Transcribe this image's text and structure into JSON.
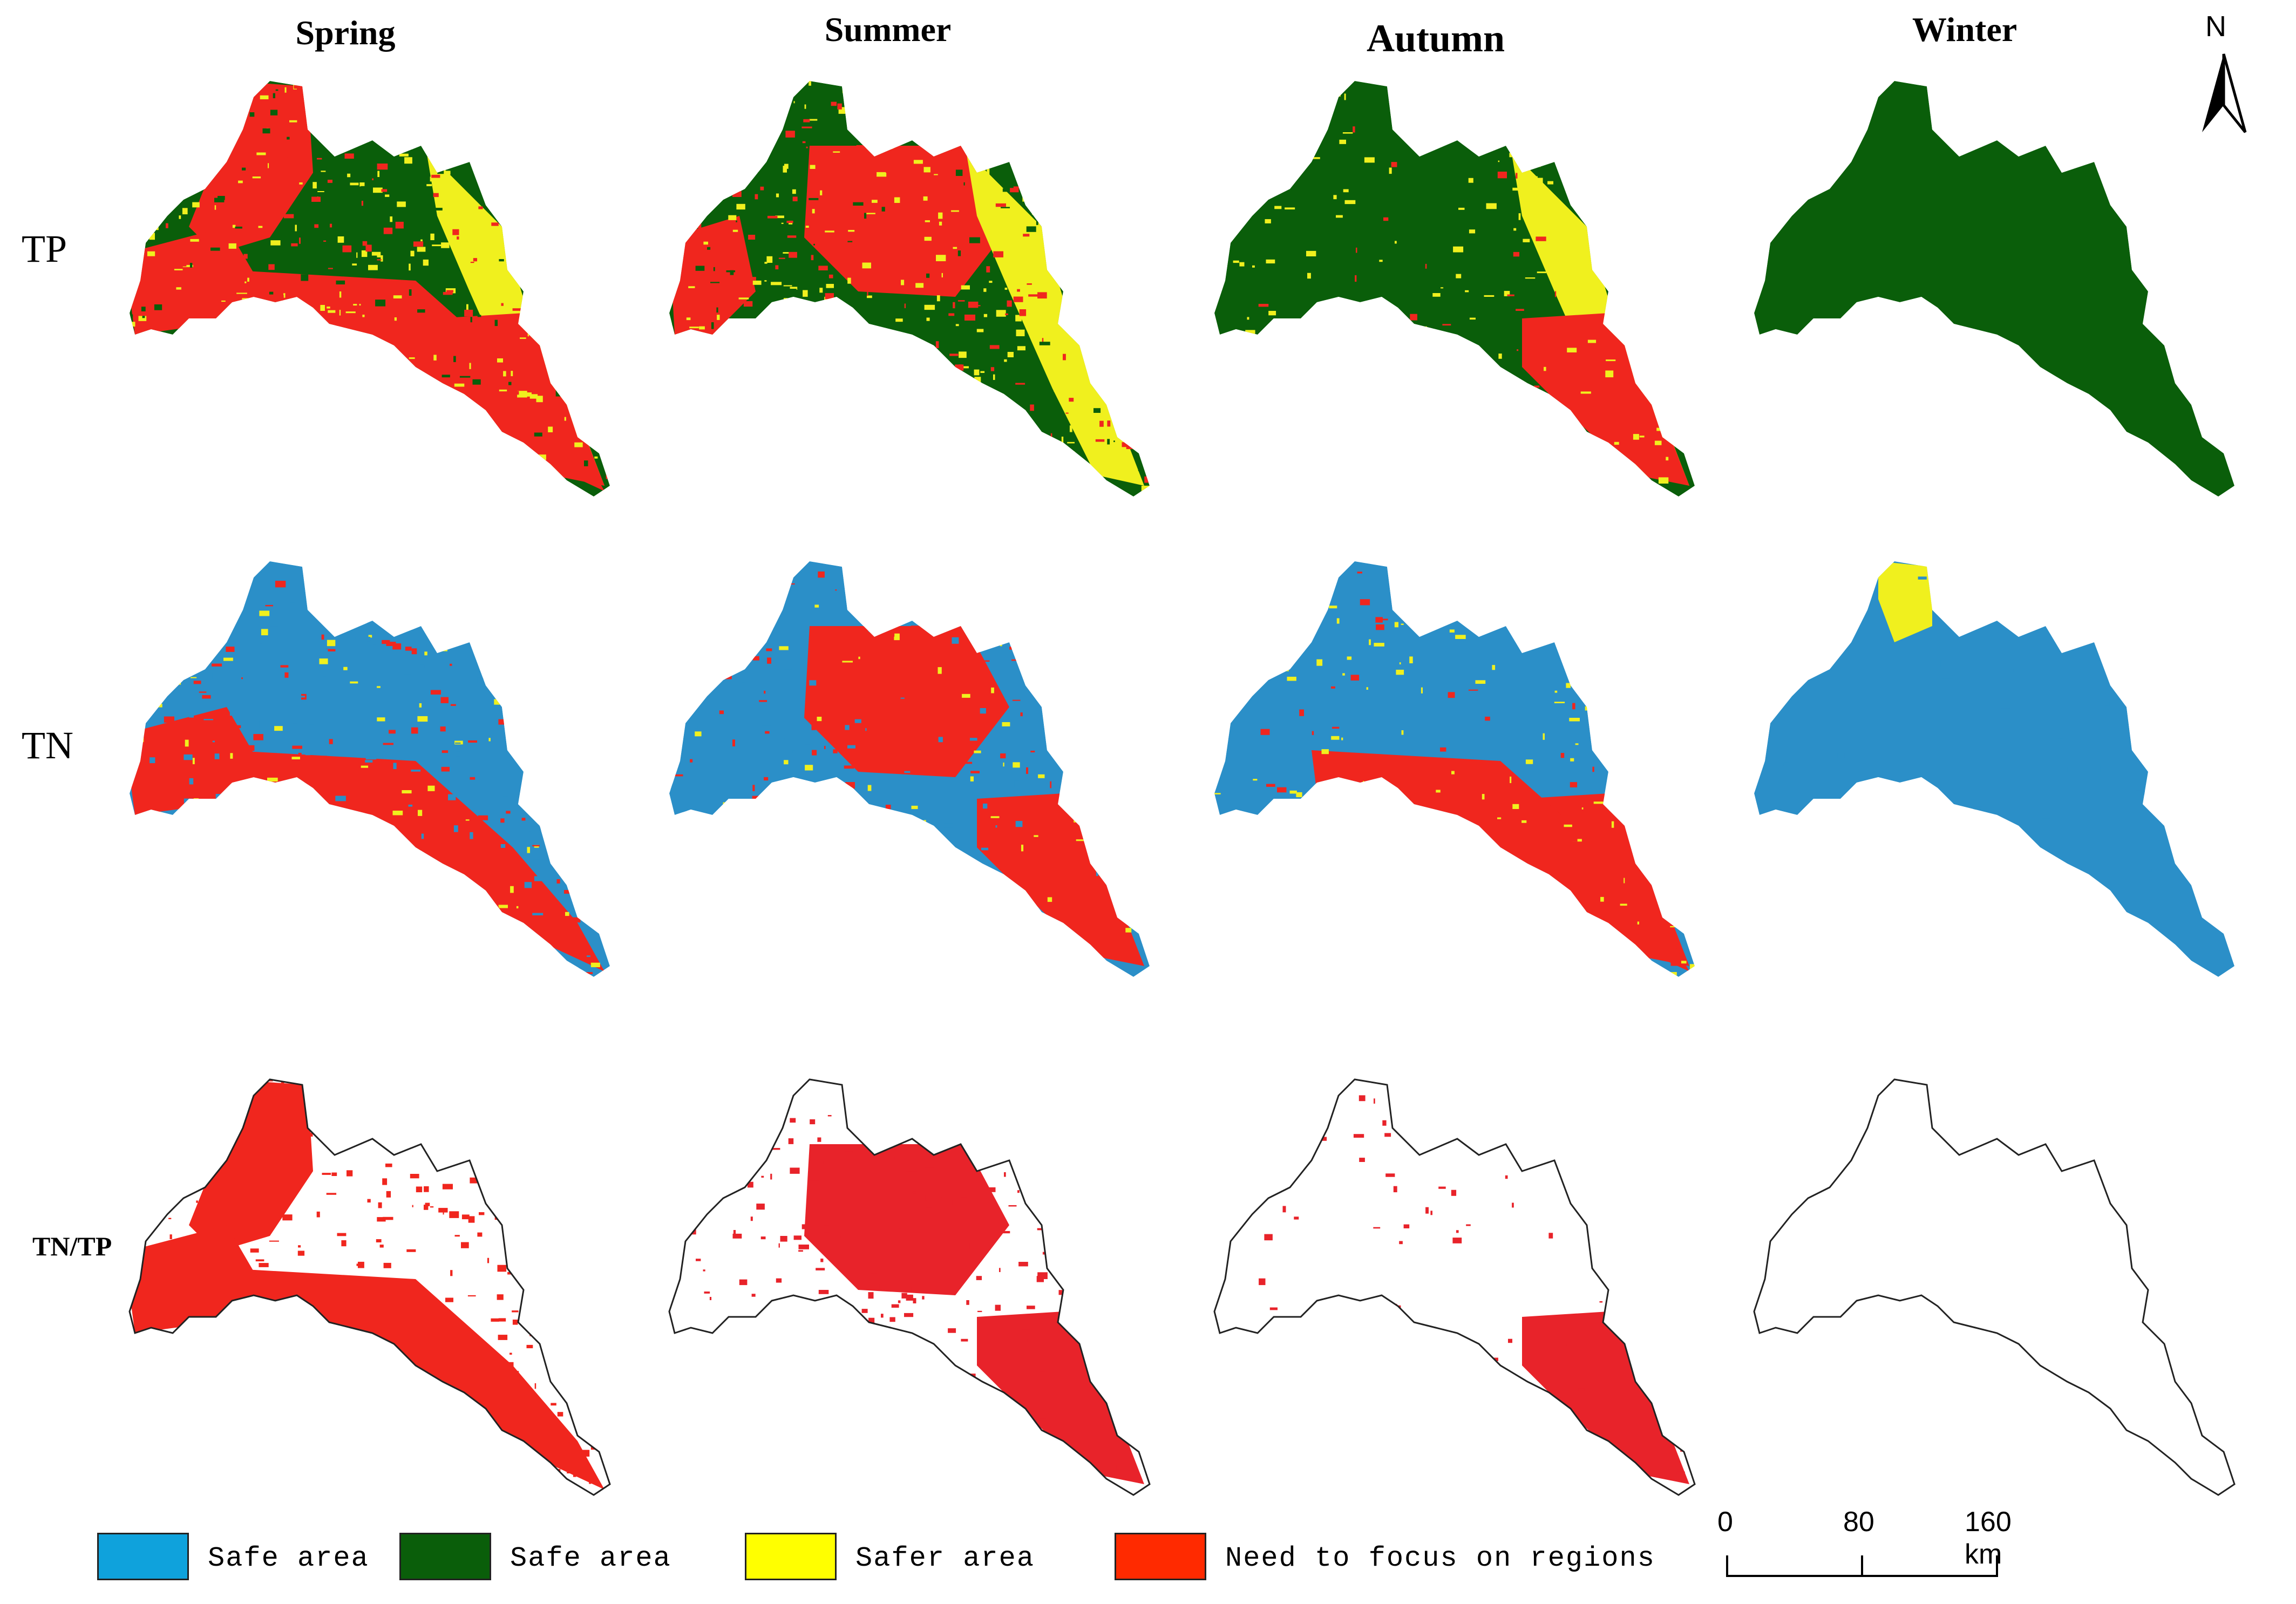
{
  "columns": [
    "Spring",
    "Summer",
    "Autumn",
    "Winter"
  ],
  "rows": [
    "TP",
    "TN",
    "TN/TP"
  ],
  "north_arrow": {
    "label": "N"
  },
  "legend": [
    {
      "label": "Safe area",
      "color": "#0fa2dc"
    },
    {
      "label": "Safe area",
      "color": "#0a5e0a"
    },
    {
      "label": "Safer area",
      "color": "#ffff00"
    },
    {
      "label": "Need to focus on regions",
      "color": "#ff2a00"
    }
  ],
  "scale_bar": {
    "ticks": [
      "0",
      "80",
      "160 km"
    ]
  },
  "colors": {
    "tp_safe": "#0a5e0a",
    "tn_safe": "#2b8fc8",
    "safer": "#f0f01e",
    "focus": "#f0261e",
    "ratio_focus": "#e8232a",
    "outline": "#222222"
  }
}
